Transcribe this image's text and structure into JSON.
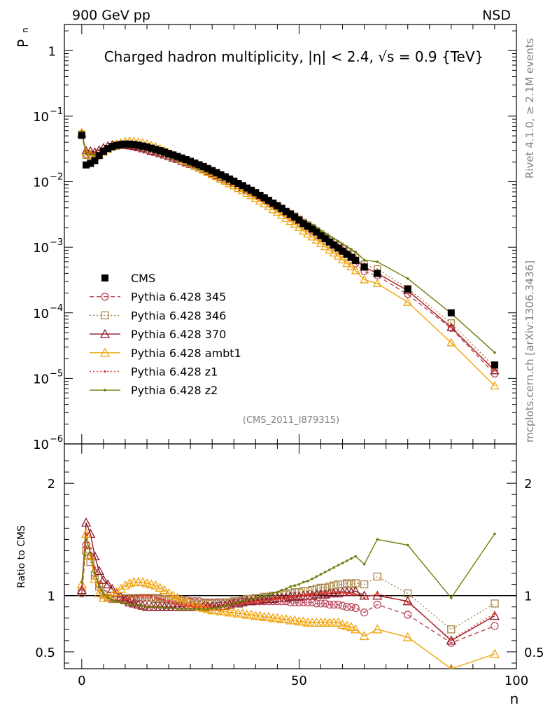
{
  "header": {
    "left": "900 GeV pp",
    "right": "NSD"
  },
  "side_text": {
    "rivet": "Rivet 4.1.0, ≥ 2.1M events",
    "mcplots": "mcplots.cern.ch [arXiv:1306.3436]"
  },
  "chart_data": {
    "type": "line",
    "title": "Charged hadron multiplicity, |η| < 2.4, √s = 0.9 {TeV}",
    "analysis_tag": "(CMS_2011_I879315)",
    "xlabel": "n",
    "ylabel_top": "P",
    "ylabel_top_sub": "n",
    "ylabel_ratio": "Ratio to CMS",
    "xlim": [
      -4,
      100
    ],
    "ylim_top": [
      1e-06,
      2.5
    ],
    "ylim_ratio": [
      0.35,
      2.35
    ],
    "x_ticks": [
      "0",
      "50",
      "100"
    ],
    "y_ticks_top": [
      {
        "base": "10",
        "exp": "−6"
      },
      {
        "base": "10",
        "exp": "−5"
      },
      {
        "base": "10",
        "exp": "−4"
      },
      {
        "base": "10",
        "exp": "−3"
      },
      {
        "base": "10",
        "exp": "−2"
      },
      {
        "base": "10",
        "exp": "−1"
      },
      {
        "base": "1",
        "exp": ""
      }
    ],
    "y_ticks_ratio": [
      "0.5",
      "1",
      "2"
    ],
    "x": [
      0,
      1,
      2,
      3,
      4,
      5,
      6,
      7,
      8,
      9,
      10,
      11,
      12,
      13,
      14,
      15,
      16,
      17,
      18,
      19,
      20,
      21,
      22,
      23,
      24,
      25,
      26,
      27,
      28,
      29,
      30,
      31,
      32,
      33,
      34,
      35,
      36,
      37,
      38,
      39,
      40,
      41,
      42,
      43,
      44,
      45,
      46,
      47,
      48,
      49,
      50,
      51,
      52,
      53,
      54,
      55,
      56,
      57,
      58,
      59,
      60,
      61,
      62,
      63,
      65,
      68,
      75,
      85,
      95
    ],
    "cms": [
      0.051,
      0.018,
      0.019,
      0.021,
      0.025,
      0.029,
      0.032,
      0.0345,
      0.036,
      0.037,
      0.0375,
      0.0375,
      0.037,
      0.036,
      0.035,
      0.034,
      0.0325,
      0.0312,
      0.0298,
      0.0284,
      0.027,
      0.0256,
      0.0243,
      0.023,
      0.0217,
      0.0205,
      0.0193,
      0.0181,
      0.017,
      0.0159,
      0.0148,
      0.0138,
      0.0128,
      0.0119,
      0.011,
      0.0102,
      0.0094,
      0.0087,
      0.008,
      0.0074,
      0.0068,
      0.0062,
      0.0057,
      0.0052,
      0.0047,
      0.0043,
      0.0039,
      0.0035,
      0.0032,
      0.0029,
      0.0026,
      0.0023,
      0.0021,
      0.0019,
      0.0017,
      0.0015,
      0.00135,
      0.0012,
      0.00108,
      0.00097,
      0.00087,
      0.00078,
      0.0007,
      0.00063,
      0.0005,
      0.0004,
      0.00023,
      0.0001,
      1.6e-05
    ],
    "series": [
      {
        "name": "CMS",
        "color": "#000000",
        "style": "data",
        "ratio": []
      },
      {
        "name": "Pythia 6.428 345",
        "color": "#b9475a",
        "style": "dashed",
        "marker": "circle",
        "ratio": [
          1.02,
          1.45,
          1.35,
          1.2,
          1.1,
          1.02,
          0.98,
          0.97,
          0.97,
          0.97,
          0.97,
          0.97,
          0.97,
          0.98,
          0.98,
          0.98,
          0.98,
          0.98,
          0.98,
          0.97,
          0.97,
          0.97,
          0.97,
          0.96,
          0.96,
          0.95,
          0.95,
          0.95,
          0.94,
          0.94,
          0.94,
          0.94,
          0.94,
          0.94,
          0.94,
          0.94,
          0.95,
          0.95,
          0.95,
          0.95,
          0.95,
          0.95,
          0.95,
          0.95,
          0.95,
          0.95,
          0.95,
          0.95,
          0.94,
          0.94,
          0.94,
          0.94,
          0.94,
          0.94,
          0.93,
          0.93,
          0.93,
          0.92,
          0.92,
          0.92,
          0.91,
          0.9,
          0.9,
          0.89,
          0.85,
          0.92,
          0.83,
          0.58,
          0.73
        ]
      },
      {
        "name": "Pythia 6.428 346",
        "color": "#a98446",
        "style": "dotted",
        "marker": "square",
        "ratio": [
          1.04,
          1.4,
          1.3,
          1.18,
          1.08,
          1.01,
          0.98,
          0.97,
          0.97,
          0.97,
          0.98,
          0.98,
          0.98,
          0.98,
          0.98,
          0.98,
          0.98,
          0.97,
          0.97,
          0.97,
          0.96,
          0.96,
          0.95,
          0.95,
          0.94,
          0.94,
          0.93,
          0.93,
          0.93,
          0.93,
          0.93,
          0.93,
          0.94,
          0.94,
          0.94,
          0.95,
          0.95,
          0.96,
          0.97,
          0.97,
          0.98,
          0.98,
          0.99,
          0.99,
          1.0,
          1.0,
          1.01,
          1.01,
          1.02,
          1.03,
          1.03,
          1.04,
          1.04,
          1.05,
          1.06,
          1.07,
          1.07,
          1.08,
          1.09,
          1.1,
          1.1,
          1.11,
          1.1,
          1.11,
          1.1,
          1.17,
          1.02,
          0.7,
          0.93
        ]
      },
      {
        "name": "Pythia 6.428 370",
        "color": "#8f1a2a",
        "style": "solid",
        "marker": "triangle",
        "ratio": [
          1.05,
          1.65,
          1.55,
          1.35,
          1.22,
          1.14,
          1.1,
          1.06,
          1.02,
          0.99,
          0.96,
          0.94,
          0.93,
          0.92,
          0.91,
          0.9,
          0.9,
          0.9,
          0.9,
          0.9,
          0.9,
          0.9,
          0.9,
          0.9,
          0.9,
          0.9,
          0.9,
          0.9,
          0.9,
          0.9,
          0.9,
          0.9,
          0.91,
          0.91,
          0.92,
          0.93,
          0.93,
          0.94,
          0.95,
          0.95,
          0.96,
          0.96,
          0.97,
          0.97,
          0.97,
          0.98,
          0.98,
          0.98,
          0.99,
          0.99,
          0.99,
          1.0,
          1.0,
          1.0,
          1.01,
          1.01,
          1.01,
          1.02,
          1.02,
          1.02,
          1.03,
          1.03,
          1.03,
          1.04,
          1.0,
          1.0,
          0.95,
          0.6,
          0.82
        ]
      },
      {
        "name": "Pythia 6.428 ambt1",
        "color": "#f0a40e",
        "style": "solid",
        "marker": "triangle",
        "ratio": [
          1.1,
          1.55,
          1.35,
          1.15,
          1.02,
          0.98,
          0.98,
          1.0,
          1.03,
          1.06,
          1.09,
          1.11,
          1.12,
          1.12,
          1.12,
          1.11,
          1.1,
          1.09,
          1.07,
          1.05,
          1.02,
          1.0,
          0.98,
          0.96,
          0.94,
          0.93,
          0.91,
          0.9,
          0.89,
          0.88,
          0.87,
          0.87,
          0.86,
          0.86,
          0.85,
          0.85,
          0.84,
          0.84,
          0.83,
          0.83,
          0.82,
          0.82,
          0.81,
          0.81,
          0.8,
          0.8,
          0.79,
          0.79,
          0.78,
          0.78,
          0.77,
          0.77,
          0.76,
          0.76,
          0.76,
          0.76,
          0.76,
          0.76,
          0.76,
          0.76,
          0.74,
          0.73,
          0.72,
          0.7,
          0.64,
          0.7,
          0.63,
          0.35,
          0.48
        ]
      },
      {
        "name": "Pythia 6.428 z1",
        "color": "#e8432c",
        "style": "dotted",
        "marker": "dot",
        "ratio": [
          1.06,
          1.55,
          1.42,
          1.25,
          1.1,
          1.02,
          0.98,
          0.96,
          0.96,
          0.96,
          0.97,
          0.98,
          0.99,
          0.99,
          1.0,
          1.0,
          0.99,
          0.98,
          0.97,
          0.96,
          0.95,
          0.94,
          0.93,
          0.92,
          0.91,
          0.91,
          0.9,
          0.9,
          0.9,
          0.9,
          0.9,
          0.9,
          0.91,
          0.91,
          0.92,
          0.92,
          0.93,
          0.93,
          0.94,
          0.94,
          0.95,
          0.95,
          0.96,
          0.96,
          0.97,
          0.97,
          0.98,
          0.98,
          0.99,
          0.99,
          1.0,
          1.0,
          1.01,
          1.01,
          1.01,
          1.02,
          1.02,
          1.02,
          1.03,
          1.03,
          1.03,
          1.02,
          1.01,
          1.01,
          0.98,
          1.02,
          0.94,
          0.61,
          0.84
        ]
      },
      {
        "name": "Pythia 6.428 z2",
        "color": "#6f7c0d",
        "style": "solid",
        "marker": "dot",
        "ratio": [
          1.12,
          1.5,
          1.38,
          1.2,
          1.08,
          1.02,
          0.98,
          0.96,
          0.95,
          0.94,
          0.93,
          0.92,
          0.92,
          0.91,
          0.91,
          0.9,
          0.9,
          0.9,
          0.9,
          0.89,
          0.89,
          0.89,
          0.88,
          0.88,
          0.88,
          0.88,
          0.88,
          0.88,
          0.88,
          0.88,
          0.89,
          0.89,
          0.9,
          0.91,
          0.92,
          0.93,
          0.94,
          0.95,
          0.96,
          0.97,
          0.98,
          0.99,
          1.0,
          1.01,
          1.02,
          1.03,
          1.05,
          1.06,
          1.08,
          1.09,
          1.1,
          1.12,
          1.13,
          1.15,
          1.17,
          1.19,
          1.21,
          1.23,
          1.25,
          1.27,
          1.29,
          1.31,
          1.33,
          1.35,
          1.28,
          1.5,
          1.45,
          0.98,
          1.55
        ]
      }
    ]
  }
}
